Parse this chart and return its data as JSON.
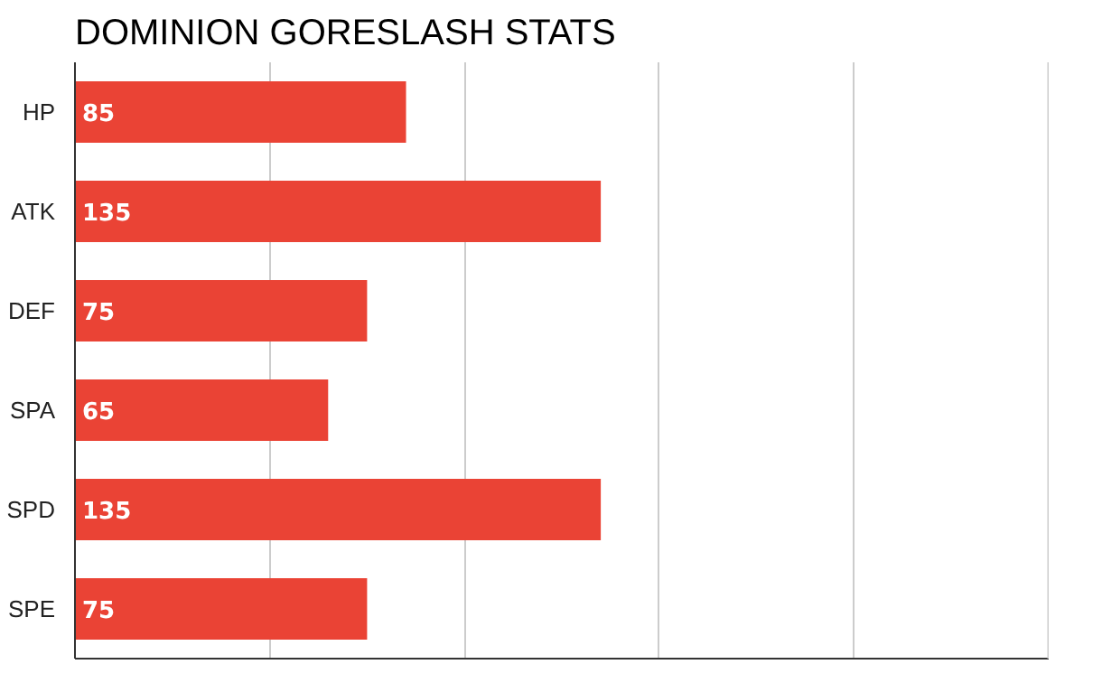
{
  "chart_data": {
    "type": "bar",
    "orientation": "horizontal",
    "title": "DOMINION GORESLASH STATS",
    "categories": [
      "HP",
      "ATK",
      "DEF",
      "SPA",
      "SPD",
      "SPE"
    ],
    "values": [
      85,
      135,
      75,
      65,
      135,
      75
    ],
    "color": "#ea4335",
    "xlim": [
      0,
      250
    ],
    "xticks": [
      {
        "value": 0,
        "label": null
      },
      {
        "value": 50,
        "label": null
      },
      {
        "value": 100,
        "label": null
      },
      {
        "value": 150,
        "label": null
      },
      {
        "value": 200,
        "label": null
      },
      {
        "value": 250,
        "label": null
      }
    ],
    "tick_labels": "y",
    "grid": "x",
    "data_labels": true
  }
}
